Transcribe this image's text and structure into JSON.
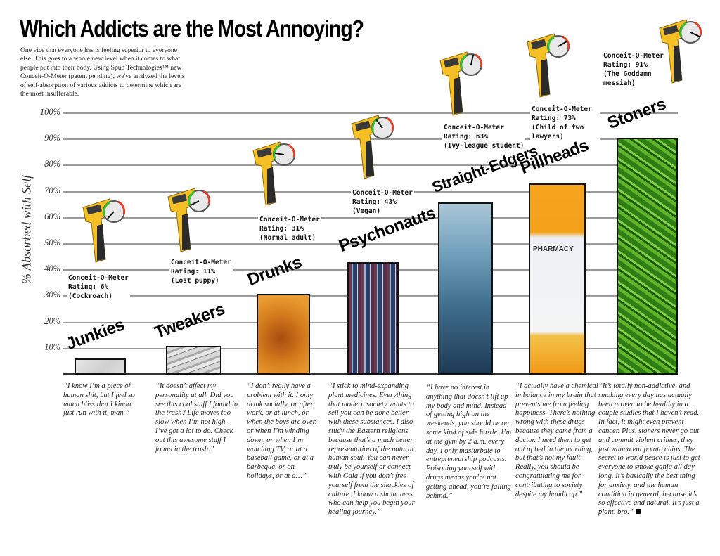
{
  "title": "Which Addicts are the Most Annoying?",
  "intro": "One vice that everyone has is feeling superior to everyone else. This goes to a whole new level when it comes to what people put into their body. Using Spud Technologies™ new Conceit-O-Meter (patent pending), we've analyzed the levels of self-absorption of various addicts to determine which are the most insufferable.",
  "y_axis": {
    "label": "% Absorbed with Self",
    "ticks": [
      "100%",
      "90%",
      "80%",
      "70%",
      "60%",
      "50%",
      "40%",
      "30%",
      "20%",
      "10%"
    ]
  },
  "categories": [
    {
      "name": "Junkies",
      "rating_line1": "Conceit-O-Meter",
      "rating_line2": "Rating: 6%",
      "rating_line3": "(Cockroach)",
      "quote": "“I know I’m a piece of human shit, but I feel so much bliss that I kinda just run with it, man.”"
    },
    {
      "name": "Tweakers",
      "rating_line1": "Conceit-O-Meter",
      "rating_line2": "Rating: 11%",
      "rating_line3": "(Lost puppy)",
      "quote": "“It doesn’t affect my personality at all. Did you see this cool stuff I found in the trash? Life moves too slow when I’m not high. I’ve got a lot to do. Check out this awesome stuff I found in the trash.”"
    },
    {
      "name": "Drunks",
      "rating_line1": "Conceit-O-Meter",
      "rating_line2": "Rating: 31%",
      "rating_line3": "(Normal adult)",
      "quote": "“I don’t really have a problem with it. I only drink socially, or after work, or at lunch, or when the boys are over, or when I’m winding down, or when I’m watching TV, or at a baseball game, or at a barbeque, or on holidays, or at a…”"
    },
    {
      "name": "Psychonauts",
      "rating_line1": "Conceit-O-Meter",
      "rating_line2": "Rating: 43%",
      "rating_line3": "(Vegan)",
      "quote": "“I stick to mind-expanding plant medicines. Everything that modern society wants to sell you can be done better with these substances. I also study the Eastern religions because that’s a much better representation of the natural human soul. You can never truly be yourself or connect with Gaia if you don’t free yourself from the shackles of culture. I know a shamaness who can help you begin your healing journey.”"
    },
    {
      "name": "Straight-Edgers",
      "rating_line1": "Conceit-O-Meter",
      "rating_line2": "Rating: 63%",
      "rating_line3": "(Ivy-league student)",
      "quote": "“I have no interest in anything that doesn’t lift up my body and mind. Instead of getting high on the weekends, you should be on some kind of side hustle. I’m at the gym by 2 a.m. every day. I only masturbate to entrepreneurship podcasts. Poisoning yourself with drugs means you’re not getting ahead, you’re falling behind.”"
    },
    {
      "name": "Pillheads",
      "rating_line1": "Conceit-O-Meter",
      "rating_line2": "Rating: 73%",
      "rating_line3": "(Child of two lawyers)",
      "quote": "“I actually have a chemical imbalance in my brain that prevents me from feeling happiness. There’s nothing wrong with these drugs because they came from a doctor. I need them to get out of bed in the morning, but that’s not my fault. Really, you should be congratulating me for contributing to society despite my handicap.”"
    },
    {
      "name": "Stoners",
      "rating_line1": "Conceit-O-Meter",
      "rating_line2": "Rating: 91%",
      "rating_line3": "(The Goddamn messiah)",
      "quote": "“It’s totally non-addictive, and smoking every day has actually been proven to be healthy in a couple studies that I haven’t read. In fact, it might even prevent cancer. Plus, stoners never go out and commit violent crimes, they just wanna eat potato chips. The secret to world peace is just to get everyone to smoke ganja all day long. It’s basically the best thing for anxiety, and the human condition in general, because it’s so effective and natural. It’s just a plant, bro.”"
    }
  ],
  "colors": {
    "gridline": "#9a9a9a",
    "meter_body": "#f5c026",
    "meter_grip": "#2b2b2b",
    "junkies_fill": "#d9d9d9",
    "tweakers_fill": "#b9b9b9",
    "drunks_fill": "#c46a14",
    "psychonauts_fill": "#4a5a7a",
    "straightedgers_fill": "#3f6e8c",
    "pillheads_fill": "#f3a21a",
    "stoners_fill": "#3f8f1f"
  },
  "chart_data": {
    "type": "bar",
    "title": "Which Addicts are the Most Annoying?",
    "xlabel": "",
    "ylabel": "% Absorbed with Self",
    "ylim": [
      0,
      100
    ],
    "yticks": [
      10,
      20,
      30,
      40,
      50,
      60,
      70,
      80,
      90,
      100
    ],
    "grid": true,
    "categories": [
      "Junkies",
      "Tweakers",
      "Drunks",
      "Psychonauts",
      "Straight-Edgers",
      "Pillheads",
      "Stoners"
    ],
    "values": [
      6,
      11,
      31,
      43,
      63,
      73,
      91
    ],
    "annotations": [
      "Conceit-O-Meter Rating: 6% (Cockroach)",
      "Conceit-O-Meter Rating: 11% (Lost puppy)",
      "Conceit-O-Meter Rating: 31% (Normal adult)",
      "Conceit-O-Meter Rating: 43% (Vegan)",
      "Conceit-O-Meter Rating: 63% (Ivy-league student)",
      "Conceit-O-Meter Rating: 73% (Child of two lawyers)",
      "Conceit-O-Meter Rating: 91% (The Goddamn messiah)"
    ]
  }
}
